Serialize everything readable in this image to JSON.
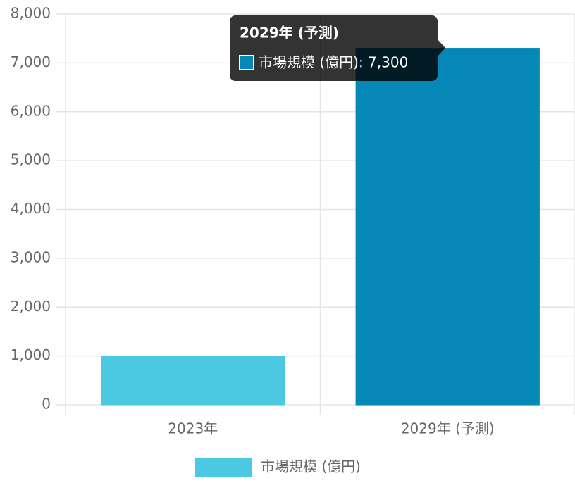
{
  "chart_data": {
    "type": "bar",
    "categories": [
      "2023年",
      "2029年 (予測)"
    ],
    "series": [
      {
        "name": "市場規模 (億円)",
        "color": "#4bc8e2",
        "values": [
          1000,
          7300
        ]
      }
    ],
    "highlight_color": "#0588b8",
    "ylim": [
      0,
      8000
    ],
    "yticks": [
      0,
      {
        "value": 1000,
        "label": "1,000"
      },
      {
        "value": 2000,
        "label": "2,000"
      },
      {
        "value": 3000,
        "label": "3,000"
      },
      {
        "value": 4000,
        "label": "4,000"
      },
      {
        "value": 5000,
        "label": "5,000"
      },
      {
        "value": 6000,
        "label": "6,000"
      },
      {
        "value": 7000,
        "label": "7,000"
      },
      {
        "value": 8000,
        "label": "8,000"
      }
    ],
    "grid": true,
    "legend": "bottom",
    "tooltip": {
      "title": "2029年 (予測)",
      "text": "市場規模 (億円): 7,300"
    }
  }
}
